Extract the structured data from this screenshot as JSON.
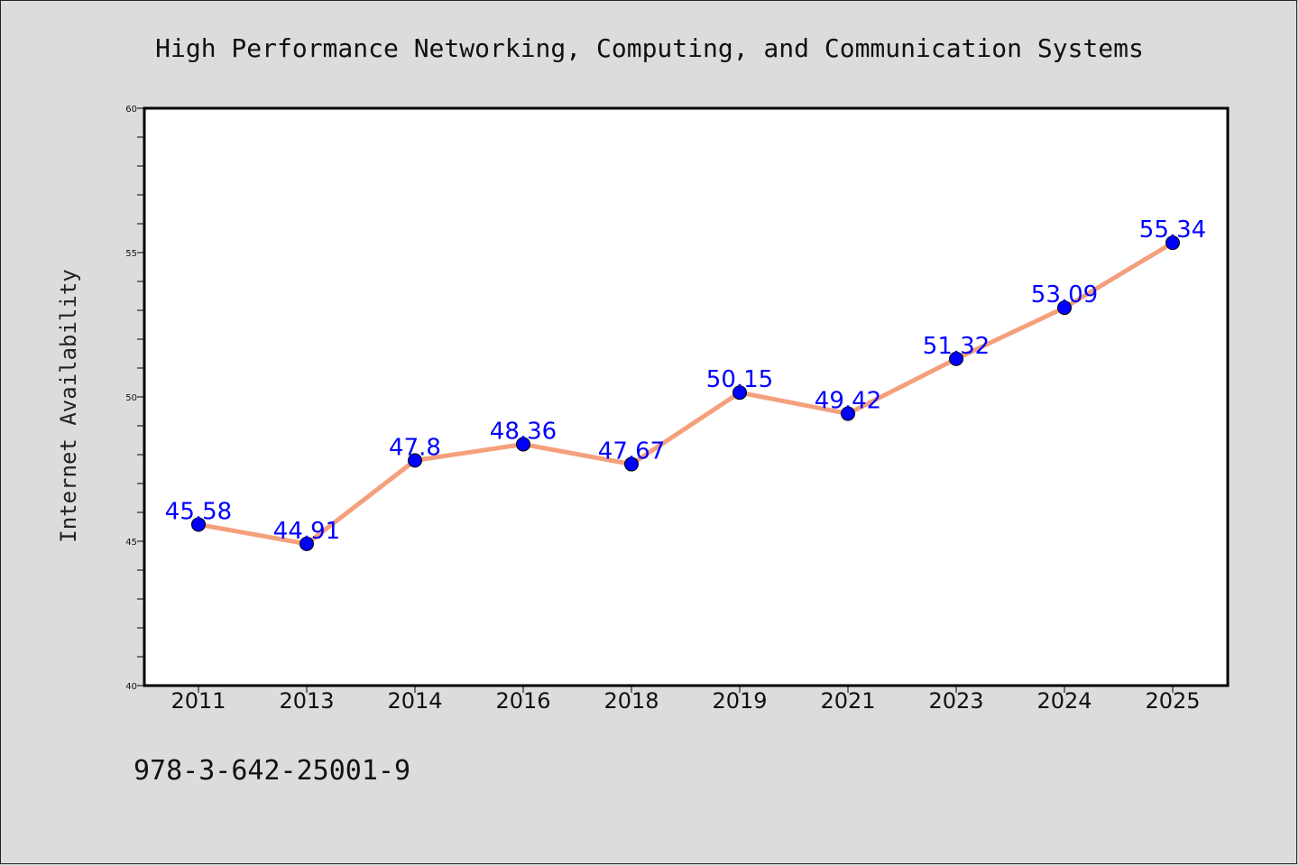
{
  "chart_data": {
    "type": "line",
    "title": "High Performance Networking, Computing, and Communication Systems",
    "xlabel": "",
    "ylabel": "Internet Availability",
    "categories": [
      "2011",
      "2013",
      "2014",
      "2016",
      "2018",
      "2019",
      "2021",
      "2023",
      "2024",
      "2025"
    ],
    "series": [
      {
        "values": [
          45.58,
          44.91,
          47.8,
          48.36,
          47.67,
          50.15,
          49.42,
          51.32,
          53.09,
          55.34
        ],
        "line_color": "#f4a07c",
        "marker_color": "#0000ff"
      }
    ],
    "data_labels": [
      "45.58",
      "44.91",
      "47.8",
      "48.36",
      "47.67",
      "50.15",
      "49.42",
      "51.32",
      "53.09",
      "55.34"
    ],
    "ylim": [
      40,
      60
    ],
    "y_ticks": [
      "40",
      "45",
      "50",
      "55",
      "60"
    ],
    "grid": false,
    "legend": "none"
  },
  "footer_text": "978-3-642-25001-9"
}
